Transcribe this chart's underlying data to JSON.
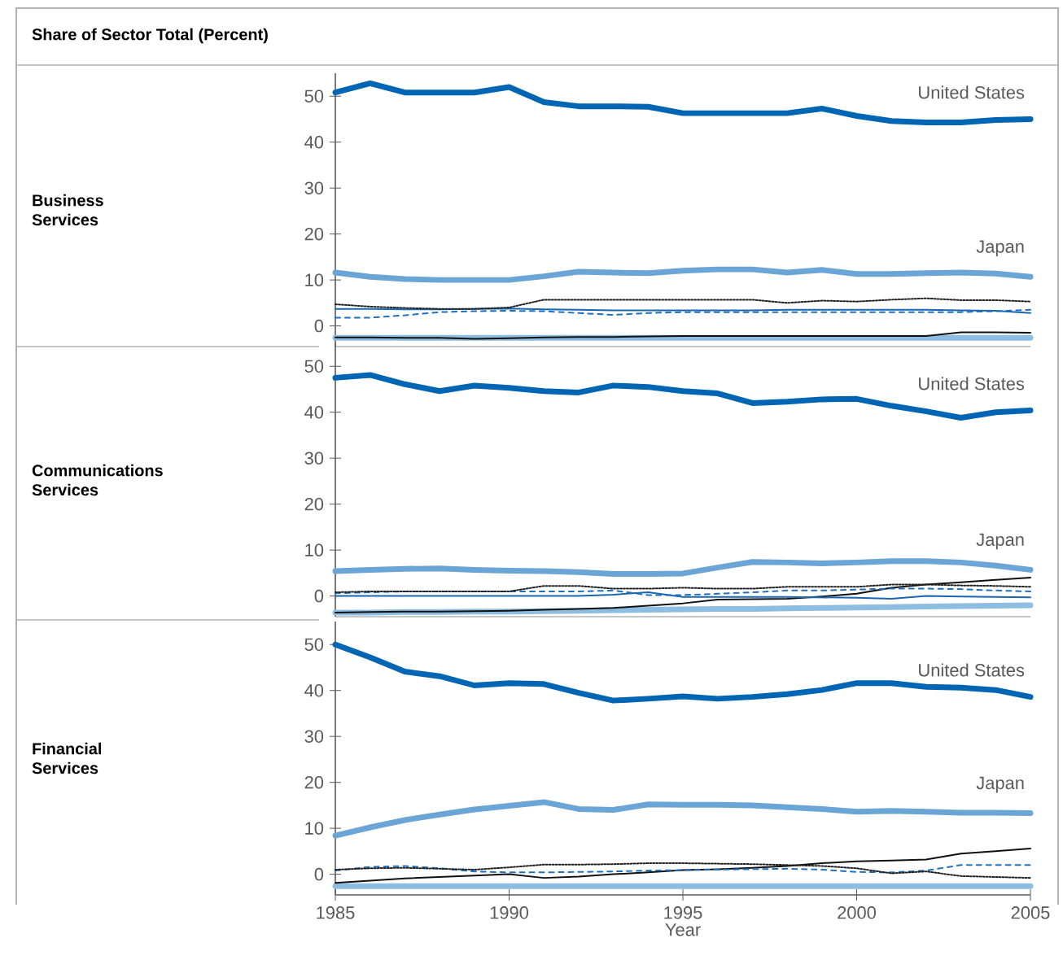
{
  "chart_data": [
    {
      "type": "line",
      "title": "Share of Sector Total (Percent)",
      "ylabel": "Business Services",
      "x": [
        1985,
        1986,
        1987,
        1988,
        1989,
        1990,
        1991,
        1992,
        1993,
        1994,
        1995,
        1996,
        1997,
        1998,
        1999,
        2000,
        2001,
        2002,
        2003,
        2004,
        2005
      ],
      "xlim": [
        1985,
        2005
      ],
      "ylim": [
        -4.5,
        55
      ],
      "yticks": [
        0,
        10,
        20,
        30,
        40,
        50
      ],
      "tick_labels": "y",
      "series": [
        {
          "name": "United States",
          "color": "#0066b3",
          "line_style": "solid",
          "values": [
            50.8,
            52.8,
            50.8,
            50.8,
            50.8,
            52,
            48.7,
            47.8,
            47.8,
            47.7,
            46.3,
            46.3,
            46.3,
            46.3,
            47.3,
            45.7,
            44.6,
            44.3,
            44.3,
            44.8,
            45
          ]
        },
        {
          "name": "Japan",
          "color": "#6aa5d6",
          "line_style": "solid",
          "values": [
            11.6,
            10.7,
            10.2,
            10,
            10,
            10,
            10.8,
            11.8,
            11.6,
            11.5,
            12,
            12.3,
            12.3,
            11.6,
            12.2,
            11.3,
            11.3,
            11.5,
            11.6,
            11.4,
            10.7
          ]
        },
        {
          "color": "#222222",
          "line_style": "dotted",
          "values": [
            4.7,
            4.2,
            3.9,
            3.7,
            3.7,
            4,
            5.7,
            5.7,
            5.7,
            5.7,
            5.7,
            5.7,
            5.7,
            5,
            5.5,
            5.3,
            5.7,
            6,
            5.6,
            5.6,
            5.3
          ]
        },
        {
          "color": "#1f6fbf",
          "line_style": "dashed",
          "values": [
            1.8,
            1.8,
            2.3,
            3,
            3.2,
            3.3,
            3.2,
            2.8,
            2.4,
            2.8,
            3,
            3,
            3,
            3,
            3,
            3,
            3,
            3,
            3,
            3.2,
            3.5
          ]
        },
        {
          "color": "#1a66b0",
          "line_style": "solid",
          "values": [
            3.7,
            3.7,
            3.6,
            3.6,
            3.7,
            3.8,
            3.6,
            3.5,
            3.4,
            3.4,
            3.4,
            3.4,
            3.4,
            3.5,
            3.5,
            3.5,
            3.5,
            3.5,
            3.4,
            3.3,
            2.8
          ]
        },
        {
          "color": "#111111",
          "line_style": "solid",
          "values": [
            -2.5,
            -2.5,
            -2.6,
            -2.6,
            -2.8,
            -2.7,
            -2.5,
            -2.4,
            -2.4,
            -2.3,
            -2.2,
            -2.2,
            -2.2,
            -2.2,
            -2.2,
            -2.2,
            -2.2,
            -2.2,
            -1.4,
            -1.4,
            -1.5
          ]
        },
        {
          "color": "#8dbde0",
          "line_style": "solid",
          "values": [
            -2.6,
            -2.6,
            -2.6,
            -2.6,
            -2.6,
            -2.6,
            -2.6,
            -2.6,
            -2.6,
            -2.6,
            -2.6,
            -2.6,
            -2.6,
            -2.6,
            -2.6,
            -2.6,
            -2.6,
            -2.6,
            -2.6,
            -2.6,
            -2.6
          ]
        }
      ]
    },
    {
      "type": "line",
      "ylabel": "Communications Services",
      "x": [
        1985,
        1986,
        1987,
        1988,
        1989,
        1990,
        1991,
        1992,
        1993,
        1994,
        1995,
        1996,
        1997,
        1998,
        1999,
        2000,
        2001,
        2002,
        2003,
        2004,
        2005
      ],
      "xlim": [
        1985,
        2005
      ],
      "ylim": [
        -4.5,
        55
      ],
      "yticks": [
        0,
        10,
        20,
        30,
        40,
        50
      ],
      "tick_labels": "y",
      "series": [
        {
          "name": "United States",
          "color": "#0066b3",
          "line_style": "solid",
          "values": [
            47.5,
            48.1,
            46.1,
            44.6,
            45.8,
            45.3,
            44.6,
            44.3,
            45.8,
            45.5,
            44.6,
            44.1,
            42,
            42.3,
            42.8,
            42.9,
            41.4,
            40.2,
            38.8,
            40,
            40.4
          ]
        },
        {
          "name": "Japan",
          "color": "#6aa5d6",
          "line_style": "solid",
          "values": [
            5.4,
            5.7,
            5.9,
            6,
            5.7,
            5.5,
            5.4,
            5.2,
            4.8,
            4.8,
            4.9,
            6.2,
            7.4,
            7.3,
            7.1,
            7.3,
            7.6,
            7.6,
            7.3,
            6.6,
            5.7
          ]
        },
        {
          "color": "#222222",
          "line_style": "dotted",
          "values": [
            0.8,
            1,
            1,
            1,
            1,
            1,
            2.2,
            2.2,
            1.6,
            1.6,
            1.8,
            1.6,
            1.6,
            2,
            2,
            2,
            2.5,
            2.5,
            2.3,
            2.2,
            2
          ]
        },
        {
          "color": "#1f6fbf",
          "line_style": "dashed",
          "values": [
            0.6,
            0.8,
            1,
            1,
            1,
            1,
            1,
            1,
            1.2,
            0.2,
            0.2,
            0.5,
            0.8,
            1.2,
            1.2,
            1.4,
            1.6,
            1.6,
            1.5,
            1.2,
            1
          ]
        },
        {
          "color": "#1a66b0",
          "line_style": "solid",
          "values": [
            0,
            0,
            0,
            0,
            0,
            0,
            0,
            0,
            0.3,
            0.8,
            -0.2,
            -0.2,
            -0.2,
            -0.2,
            -0.3,
            -0.4,
            -0.6,
            0,
            -0.1,
            -0.2,
            -0.3
          ]
        },
        {
          "color": "#111111",
          "line_style": "solid",
          "values": [
            -3.6,
            -3.5,
            -3.4,
            -3.4,
            -3.3,
            -3.2,
            -3,
            -2.8,
            -2.6,
            -2.1,
            -1.6,
            -0.8,
            -0.7,
            -0.6,
            -0.1,
            0.5,
            1.8,
            2.5,
            3,
            3.5,
            4
          ]
        },
        {
          "color": "#8dbde0",
          "line_style": "solid",
          "values": [
            -3.6,
            -3.6,
            -3.5,
            -3.5,
            -3.4,
            -3.4,
            -3.3,
            -3.2,
            -3.1,
            -3,
            -2.9,
            -2.8,
            -2.8,
            -2.7,
            -2.6,
            -2.5,
            -2.4,
            -2.3,
            -2.2,
            -2.1,
            -2
          ]
        }
      ]
    },
    {
      "type": "line",
      "ylabel": "Financial Services",
      "xlabel": "Year",
      "x": [
        1985,
        1986,
        1987,
        1988,
        1989,
        1990,
        1991,
        1992,
        1993,
        1994,
        1995,
        1996,
        1997,
        1998,
        1999,
        2000,
        2001,
        2002,
        2003,
        2004,
        2005
      ],
      "xlim": [
        1985,
        2005
      ],
      "xticks": [
        1985,
        1990,
        1995,
        2000,
        2005
      ],
      "ylim": [
        -4.5,
        55
      ],
      "yticks": [
        0,
        10,
        20,
        30,
        40,
        50
      ],
      "series": [
        {
          "name": "United States",
          "color": "#0066b3",
          "line_style": "solid",
          "values": [
            50,
            47.2,
            44.1,
            43.1,
            41.1,
            41.6,
            41.4,
            39.5,
            37.8,
            38.2,
            38.7,
            38.2,
            38.6,
            39.2,
            40.1,
            41.6,
            41.6,
            40.8,
            40.6,
            40.1,
            38.6
          ]
        },
        {
          "name": "Japan",
          "color": "#6aa5d6",
          "line_style": "solid",
          "values": [
            8.4,
            10.2,
            11.8,
            13,
            14.1,
            14.9,
            15.7,
            14.2,
            14,
            15.2,
            15.1,
            15.1,
            15,
            14.6,
            14.2,
            13.6,
            13.8,
            13.6,
            13.4,
            13.4,
            13.3
          ]
        },
        {
          "color": "#222222",
          "line_style": "dotted",
          "values": [
            1,
            1.3,
            1.4,
            1.2,
            1,
            1.5,
            2.1,
            2.1,
            2.2,
            2.4,
            2.4,
            2.3,
            2.2,
            2,
            1.8,
            1.3,
            0.2,
            0.6,
            -0.4,
            -0.6,
            -0.8
          ]
        },
        {
          "color": "#1f6fbf",
          "line_style": "dashed",
          "values": [
            0.8,
            1.6,
            1.8,
            1.3,
            0.6,
            0.4,
            0.4,
            0.5,
            0.6,
            0.8,
            0.9,
            1,
            1.1,
            1.2,
            1,
            0.5,
            0.4,
            0.8,
            2,
            2,
            2
          ]
        },
        {
          "color": "#111111",
          "line_style": "solid",
          "values": [
            -1.9,
            -1.4,
            -0.9,
            -0.6,
            -0.3,
            0,
            -0.8,
            -0.5,
            0,
            0.4,
            0.9,
            1.1,
            1.4,
            1.8,
            2.4,
            2.8,
            3,
            3.2,
            4.5,
            5,
            5.6
          ]
        },
        {
          "color": "#8dbde0",
          "line_style": "solid",
          "values": [
            -2.6,
            -2.6,
            -2.6,
            -2.6,
            -2.6,
            -2.6,
            -2.6,
            -2.6,
            -2.6,
            -2.6,
            -2.6,
            -2.6,
            -2.6,
            -2.6,
            -2.6,
            -2.6,
            -2.6,
            -2.6,
            -2.6,
            -2.6,
            -2.6
          ]
        }
      ]
    }
  ]
}
